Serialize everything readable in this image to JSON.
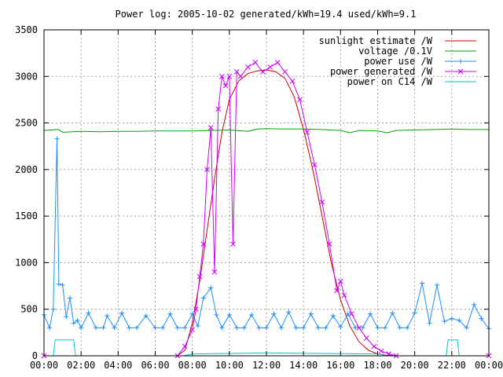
{
  "chart_data": {
    "type": "line",
    "title": "Power log: 2005-10-02 generated/kWh=19.4 used/kWh=9.1",
    "xlabel": "",
    "ylabel": "",
    "xlim": [
      0,
      24
    ],
    "ylim": [
      0,
      3500
    ],
    "x_ticks": [
      {
        "value": 0,
        "label": "00:00"
      },
      {
        "value": 2,
        "label": "02:00"
      },
      {
        "value": 4,
        "label": "04:00"
      },
      {
        "value": 6,
        "label": "06:00"
      },
      {
        "value": 8,
        "label": "08:00"
      },
      {
        "value": 10,
        "label": "10:00"
      },
      {
        "value": 12,
        "label": "12:00"
      },
      {
        "value": 14,
        "label": "14:00"
      },
      {
        "value": 16,
        "label": "16:00"
      },
      {
        "value": 18,
        "label": "18:00"
      },
      {
        "value": 20,
        "label": "20:00"
      },
      {
        "value": 22,
        "label": "22:00"
      },
      {
        "value": 24,
        "label": "00:00"
      }
    ],
    "y_ticks": [
      {
        "value": 0,
        "label": "0"
      },
      {
        "value": 500,
        "label": "500"
      },
      {
        "value": 1000,
        "label": "1000"
      },
      {
        "value": 1500,
        "label": "1500"
      },
      {
        "value": 2000,
        "label": "2000"
      },
      {
        "value": 2500,
        "label": "2500"
      },
      {
        "value": 3000,
        "label": "3000"
      },
      {
        "value": 3500,
        "label": "3500"
      }
    ],
    "grid": true,
    "legend_position": "top-right",
    "series": [
      {
        "name": "sunlight estimate /W",
        "color": "#cc0000",
        "marker": "none",
        "x": [
          0,
          7.2,
          7.6,
          8.0,
          8.4,
          8.8,
          9.2,
          9.6,
          10.0,
          10.5,
          11.0,
          11.5,
          12.0,
          12.5,
          13.0,
          13.5,
          14.0,
          14.5,
          15.0,
          15.5,
          16.0,
          16.5,
          17.0,
          17.5,
          18.0,
          18.5,
          19.0,
          24
        ],
        "values": [
          0,
          0,
          60,
          350,
          800,
          1350,
          1900,
          2400,
          2750,
          2950,
          3030,
          3060,
          3070,
          3050,
          2980,
          2780,
          2430,
          2000,
          1500,
          1000,
          600,
          320,
          150,
          60,
          20,
          5,
          0,
          0
        ]
      },
      {
        "name": "voltage /0.1V",
        "color": "#00a000",
        "marker": "none",
        "x": [
          0,
          0.8,
          1.0,
          2.0,
          3.0,
          4.0,
          5.0,
          6.0,
          7.0,
          8.0,
          9.0,
          10.0,
          11.0,
          11.5,
          12.0,
          13.0,
          14.0,
          15.0,
          16.0,
          16.5,
          17.0,
          18.0,
          18.5,
          19.0,
          20.0,
          21.0,
          22.0,
          23.0,
          24.0
        ],
        "values": [
          2420,
          2430,
          2400,
          2410,
          2405,
          2410,
          2410,
          2415,
          2415,
          2415,
          2420,
          2425,
          2410,
          2435,
          2440,
          2435,
          2435,
          2430,
          2420,
          2395,
          2420,
          2415,
          2395,
          2420,
          2425,
          2430,
          2435,
          2430,
          2430
        ]
      },
      {
        "name": "power use /W",
        "color": "#1e90ff",
        "marker": "plus",
        "x": [
          0.0,
          0.3,
          0.5,
          0.7,
          0.8,
          1.0,
          1.2,
          1.4,
          1.6,
          1.8,
          2.0,
          2.4,
          2.8,
          3.2,
          3.4,
          3.8,
          4.2,
          4.6,
          5.0,
          5.5,
          6.0,
          6.4,
          6.8,
          7.2,
          7.6,
          8.0,
          8.3,
          8.6,
          9.0,
          9.3,
          9.6,
          10.0,
          10.4,
          10.8,
          11.2,
          11.6,
          12.0,
          12.4,
          12.8,
          13.2,
          13.6,
          14.0,
          14.4,
          14.8,
          15.2,
          15.6,
          16.0,
          16.4,
          16.8,
          17.2,
          17.6,
          18.0,
          18.4,
          18.8,
          19.2,
          19.6,
          20.0,
          20.4,
          20.8,
          21.2,
          21.6,
          22.0,
          22.4,
          22.8,
          23.2,
          23.6,
          24.0
        ],
        "values": [
          440,
          300,
          500,
          2330,
          770,
          760,
          420,
          620,
          350,
          380,
          300,
          460,
          300,
          300,
          430,
          300,
          460,
          300,
          300,
          430,
          300,
          300,
          450,
          300,
          300,
          450,
          320,
          620,
          730,
          440,
          300,
          440,
          300,
          300,
          440,
          300,
          300,
          450,
          300,
          470,
          300,
          300,
          450,
          300,
          300,
          430,
          310,
          450,
          300,
          300,
          450,
          300,
          300,
          460,
          300,
          300,
          460,
          780,
          350,
          760,
          370,
          400,
          380,
          300,
          550,
          400,
          290
        ]
      },
      {
        "name": "power generated /W",
        "color": "#cc00ff",
        "marker": "x",
        "x": [
          0,
          7.2,
          7.6,
          8.0,
          8.2,
          8.4,
          8.6,
          8.8,
          9.0,
          9.2,
          9.4,
          9.6,
          9.8,
          10.0,
          10.2,
          10.4,
          10.6,
          11.0,
          11.4,
          11.8,
          12.2,
          12.6,
          13.0,
          13.4,
          13.8,
          14.2,
          14.6,
          15.0,
          15.4,
          15.8,
          16.0,
          16.2,
          16.6,
          17.0,
          17.4,
          17.8,
          18.2,
          18.6,
          19.0,
          24
        ],
        "values": [
          0,
          0,
          100,
          280,
          500,
          850,
          1200,
          2000,
          2450,
          900,
          2650,
          3000,
          2900,
          3000,
          1200,
          3050,
          3000,
          3100,
          3150,
          3050,
          3100,
          3150,
          3050,
          2950,
          2750,
          2400,
          2050,
          1650,
          1200,
          700,
          800,
          650,
          450,
          300,
          190,
          100,
          50,
          20,
          0,
          0
        ]
      },
      {
        "name": "power on C14 /W",
        "color": "#00c8c8",
        "marker": "none",
        "x": [
          0,
          0.5,
          0.6,
          1.6,
          1.7,
          7.5,
          8.0,
          12.0,
          18.0,
          18.5,
          21.7,
          21.8,
          22.3,
          22.4,
          24
        ],
        "values": [
          0,
          0,
          170,
          170,
          0,
          0,
          20,
          30,
          20,
          0,
          0,
          170,
          170,
          0,
          0
        ]
      }
    ]
  }
}
